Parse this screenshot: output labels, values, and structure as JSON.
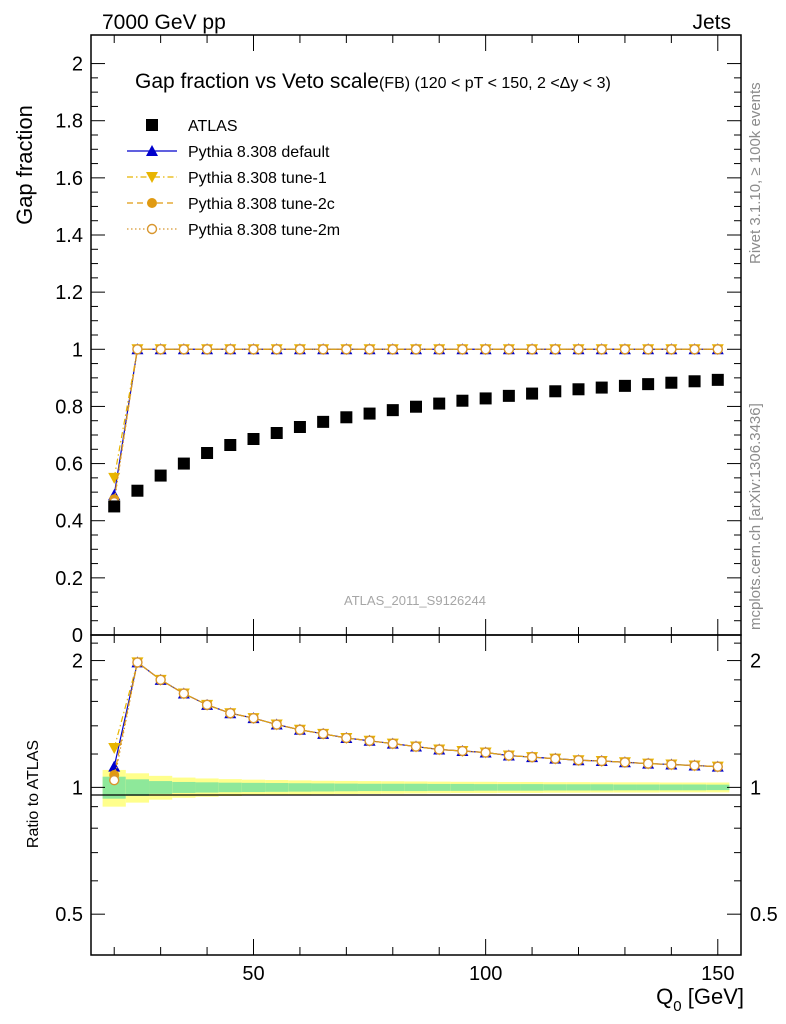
{
  "header": {
    "left": "7000 GeV pp",
    "right": "Jets"
  },
  "title": {
    "main": "Gap fraction vs Veto scale",
    "detail": "(FB) (120 < pT < 150, 2 <Δy < 3)"
  },
  "side_labels": {
    "rivet": "Rivet 3.1.10, ≥ 100k events",
    "mcplots": "mcplots.cern.ch [arXiv:1306.3436]"
  },
  "analysis_id": "ATLAS_2011_S9126244",
  "chart_data": {
    "type": "scatter",
    "x": [
      20,
      25,
      30,
      35,
      40,
      45,
      50,
      55,
      60,
      65,
      70,
      75,
      80,
      85,
      90,
      95,
      100,
      105,
      110,
      115,
      120,
      125,
      130,
      135,
      140,
      145,
      150
    ],
    "xlim": [
      15,
      155
    ],
    "xticks": [
      50,
      100,
      150
    ],
    "xlabel": "Q",
    "xlabel_sub": "0",
    "xlabel_unit": " [GeV]",
    "main": {
      "ylabel": "Gap fraction",
      "ylim": [
        0,
        2.1
      ],
      "yticks": [
        "0",
        "0.2",
        "0.4",
        "0.6",
        "0.8",
        "1",
        "1.2",
        "1.4",
        "1.6",
        "1.8",
        "2"
      ],
      "data": {
        "name": "ATLAS",
        "values": [
          0.45,
          0.505,
          0.558,
          0.6,
          0.637,
          0.665,
          0.686,
          0.707,
          0.728,
          0.746,
          0.762,
          0.775,
          0.787,
          0.799,
          0.81,
          0.82,
          0.828,
          0.837,
          0.845,
          0.853,
          0.86,
          0.866,
          0.872,
          0.878,
          0.883,
          0.888,
          0.893
        ]
      },
      "series": [
        {
          "name": "Pythia 8.308 default",
          "color": "#0000cc",
          "marker": "triangle-up",
          "line": "solid",
          "values": [
            0.49,
            1.0,
            1.0,
            1.0,
            1.0,
            1.0,
            1.0,
            1.0,
            1.0,
            1.0,
            1.0,
            1.0,
            1.0,
            1.0,
            1.0,
            1.0,
            1.0,
            1.0,
            1.0,
            1.0,
            1.0,
            1.0,
            1.0,
            1.0,
            1.0,
            1.0,
            1.0
          ]
        },
        {
          "name": "Pythia 8.308 tune-1",
          "color": "#e8b400",
          "marker": "triangle-down",
          "line": "dashdot",
          "values": [
            0.55,
            1.0,
            1.0,
            1.0,
            1.0,
            1.0,
            1.0,
            1.0,
            1.0,
            1.0,
            1.0,
            1.0,
            1.0,
            1.0,
            1.0,
            1.0,
            1.0,
            1.0,
            1.0,
            1.0,
            1.0,
            1.0,
            1.0,
            1.0,
            1.0,
            1.0,
            1.0
          ]
        },
        {
          "name": "Pythia 8.308 tune-2c",
          "color": "#e09a12",
          "marker": "circle",
          "line": "dashed",
          "values": [
            0.475,
            1.0,
            1.0,
            1.0,
            1.0,
            1.0,
            1.0,
            1.0,
            1.0,
            1.0,
            1.0,
            1.0,
            1.0,
            1.0,
            1.0,
            1.0,
            1.0,
            1.0,
            1.0,
            1.0,
            1.0,
            1.0,
            1.0,
            1.0,
            1.0,
            1.0,
            1.0
          ]
        },
        {
          "name": "Pythia 8.308 tune-2m",
          "color": "#d8962e",
          "marker": "circle-open",
          "line": "dotted",
          "values": [
            0.465,
            1.0,
            1.0,
            1.0,
            1.0,
            1.0,
            1.0,
            1.0,
            1.0,
            1.0,
            1.0,
            1.0,
            1.0,
            1.0,
            1.0,
            1.0,
            1.0,
            1.0,
            1.0,
            1.0,
            1.0,
            1.0,
            1.0,
            1.0,
            1.0,
            1.0,
            1.0
          ]
        }
      ]
    },
    "ratio": {
      "ylabel": "Ratio to ATLAS",
      "scale": "log",
      "ylim": [
        0.4,
        2.3
      ],
      "yticks": [
        0.5,
        1,
        2
      ],
      "ytick_labels": [
        "0.5",
        "1",
        "2"
      ],
      "band_inner": [
        0.06,
        0.045,
        0.035,
        0.03,
        0.028,
        0.026,
        0.025,
        0.024,
        0.023,
        0.022,
        0.021,
        0.02,
        0.02,
        0.02,
        0.019,
        0.019,
        0.018,
        0.018,
        0.018,
        0.017,
        0.017,
        0.017,
        0.016,
        0.016,
        0.016,
        0.016,
        0.015
      ],
      "band_outer": [
        0.1,
        0.08,
        0.065,
        0.055,
        0.05,
        0.046,
        0.043,
        0.041,
        0.039,
        0.037,
        0.036,
        0.035,
        0.034,
        0.033,
        0.032,
        0.031,
        0.031,
        0.03,
        0.03,
        0.029,
        0.029,
        0.028,
        0.028,
        0.028,
        0.027,
        0.027,
        0.027
      ],
      "series": [
        {
          "name": "Pythia 8.308 default",
          "values": [
            1.12,
            1.98,
            1.8,
            1.67,
            1.57,
            1.5,
            1.46,
            1.41,
            1.37,
            1.34,
            1.31,
            1.29,
            1.27,
            1.25,
            1.23,
            1.22,
            1.21,
            1.19,
            1.18,
            1.17,
            1.16,
            1.155,
            1.147,
            1.139,
            1.133,
            1.127,
            1.12
          ]
        },
        {
          "name": "Pythia 8.308 tune-1",
          "values": [
            1.24,
            1.98,
            1.8,
            1.67,
            1.57,
            1.5,
            1.46,
            1.41,
            1.37,
            1.34,
            1.31,
            1.29,
            1.27,
            1.25,
            1.23,
            1.22,
            1.21,
            1.19,
            1.18,
            1.17,
            1.16,
            1.155,
            1.147,
            1.139,
            1.133,
            1.127,
            1.12
          ]
        },
        {
          "name": "Pythia 8.308 tune-2c",
          "values": [
            1.07,
            1.98,
            1.8,
            1.67,
            1.57,
            1.5,
            1.46,
            1.41,
            1.37,
            1.34,
            1.31,
            1.29,
            1.27,
            1.25,
            1.23,
            1.22,
            1.21,
            1.19,
            1.18,
            1.17,
            1.16,
            1.155,
            1.147,
            1.139,
            1.133,
            1.127,
            1.12
          ]
        },
        {
          "name": "Pythia 8.308 tune-2m",
          "values": [
            1.04,
            1.98,
            1.8,
            1.67,
            1.57,
            1.5,
            1.46,
            1.41,
            1.37,
            1.34,
            1.31,
            1.29,
            1.27,
            1.25,
            1.23,
            1.22,
            1.21,
            1.19,
            1.18,
            1.17,
            1.16,
            1.155,
            1.147,
            1.139,
            1.133,
            1.127,
            1.12
          ]
        }
      ]
    }
  }
}
